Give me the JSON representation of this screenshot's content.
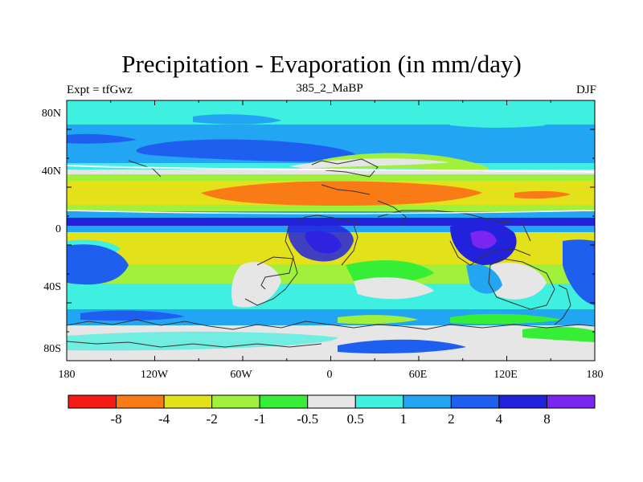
{
  "title": "Precipitation - Evaporation (in mm/day)",
  "left_label": "Expt = tfGwz",
  "center_label": "385_2_MaBP",
  "right_label": "DJF",
  "lat_ticks": [
    "80N",
    "40N",
    "0",
    "40S",
    "80S"
  ],
  "lon_ticks": [
    "180",
    "120W",
    "60W",
    "0",
    "60E",
    "120E",
    "180"
  ],
  "colorbar": {
    "levels": [
      "-8",
      "-4",
      "-2",
      "-1",
      "-0.5",
      "0.5",
      "1",
      "2",
      "4",
      "8"
    ],
    "colors": [
      "#f51a16",
      "#f87b16",
      "#e3e11a",
      "#a0f03c",
      "#37ee37",
      "#e6e6e6",
      "#3ff0e0",
      "#22a5f2",
      "#1e5ff0",
      "#2222dd",
      "#7b25f0"
    ]
  }
}
